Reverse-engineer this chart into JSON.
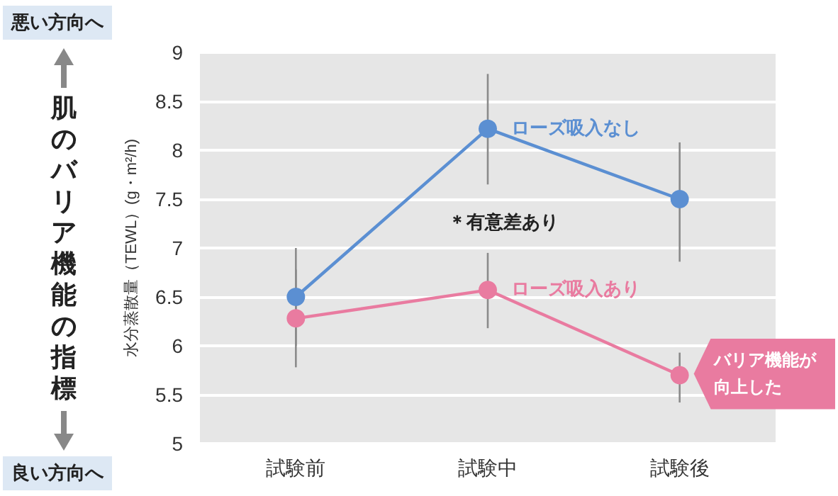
{
  "chart_data": {
    "type": "line",
    "ylabel": "水分蒸散量（TEWL）(g・m²/h)",
    "categories": [
      "試験前",
      "試験中",
      "試験後"
    ],
    "series": [
      {
        "name": "ローズ吸入なし",
        "color": "#5b8fd2",
        "values": [
          6.5,
          8.22,
          7.5
        ],
        "errors": [
          [
            6.0,
            7.0
          ],
          [
            7.65,
            8.78
          ],
          [
            6.86,
            8.08
          ]
        ]
      },
      {
        "name": "ローズ吸入あり",
        "color": "#e97ba0",
        "values": [
          6.28,
          6.57,
          5.7
        ],
        "errors": [
          [
            5.78,
            6.78
          ],
          [
            6.18,
            6.95
          ],
          [
            5.42,
            5.93
          ]
        ]
      }
    ],
    "ylim": [
      5,
      9
    ],
    "yticks": [
      5,
      5.5,
      6,
      6.5,
      7,
      7.5,
      8,
      8.5,
      9
    ],
    "grid": "y",
    "legend": false,
    "marker": "circle",
    "line_style": "solid",
    "annotations": [
      "悪い方向へ",
      "良い方向へ",
      "肌のバリア機能の指標",
      "＊有意差あり",
      {
        "text": "バリア機能が向上した",
        "x": "試験後",
        "y": 5.7
      }
    ]
  }
}
